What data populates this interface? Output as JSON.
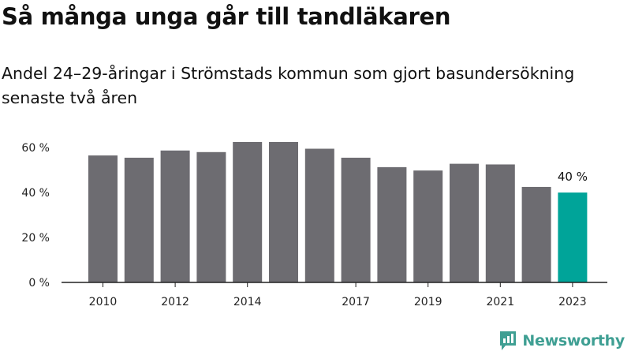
{
  "title": "Så många unga går till tandläkaren",
  "subtitle": "Andel 24–29-åringar i Strömstads kommun som gjort basundersökning senaste två åren",
  "brand": {
    "name": "Newsworthy",
    "color": "#3f9f93",
    "icon": "bar-chart-speech-bubble-icon"
  },
  "colors": {
    "bar": "#6d6c71",
    "highlight": "#00a499",
    "axis": "#222222"
  },
  "chart_data": {
    "type": "bar",
    "categories": [
      "2010",
      "2011",
      "2012",
      "2013",
      "2014",
      "2015",
      "2016",
      "2017",
      "2018",
      "2019",
      "2020",
      "2021",
      "2022",
      "2023"
    ],
    "x_tick_labels": [
      "2010",
      "",
      "2012",
      "",
      "2014",
      "",
      "",
      "2017",
      "",
      "2019",
      "",
      "2021",
      "",
      "2023"
    ],
    "values": [
      56.5,
      55.5,
      58.7,
      58.0,
      62.5,
      62.5,
      59.5,
      55.5,
      51.3,
      49.8,
      52.8,
      52.5,
      42.5,
      40
    ],
    "highlight_index": 13,
    "data_labels": [
      "",
      "",
      "",
      "",
      "",
      "",
      "",
      "",
      "",
      "",
      "",
      "",
      "",
      "40 %"
    ],
    "y_ticks": [
      0,
      20,
      40,
      60
    ],
    "y_tick_labels": [
      "0 %",
      "20 %",
      "40 %",
      "60 %"
    ],
    "ylim": [
      0,
      66
    ],
    "xlabel": "",
    "ylabel": "",
    "grid": false
  }
}
